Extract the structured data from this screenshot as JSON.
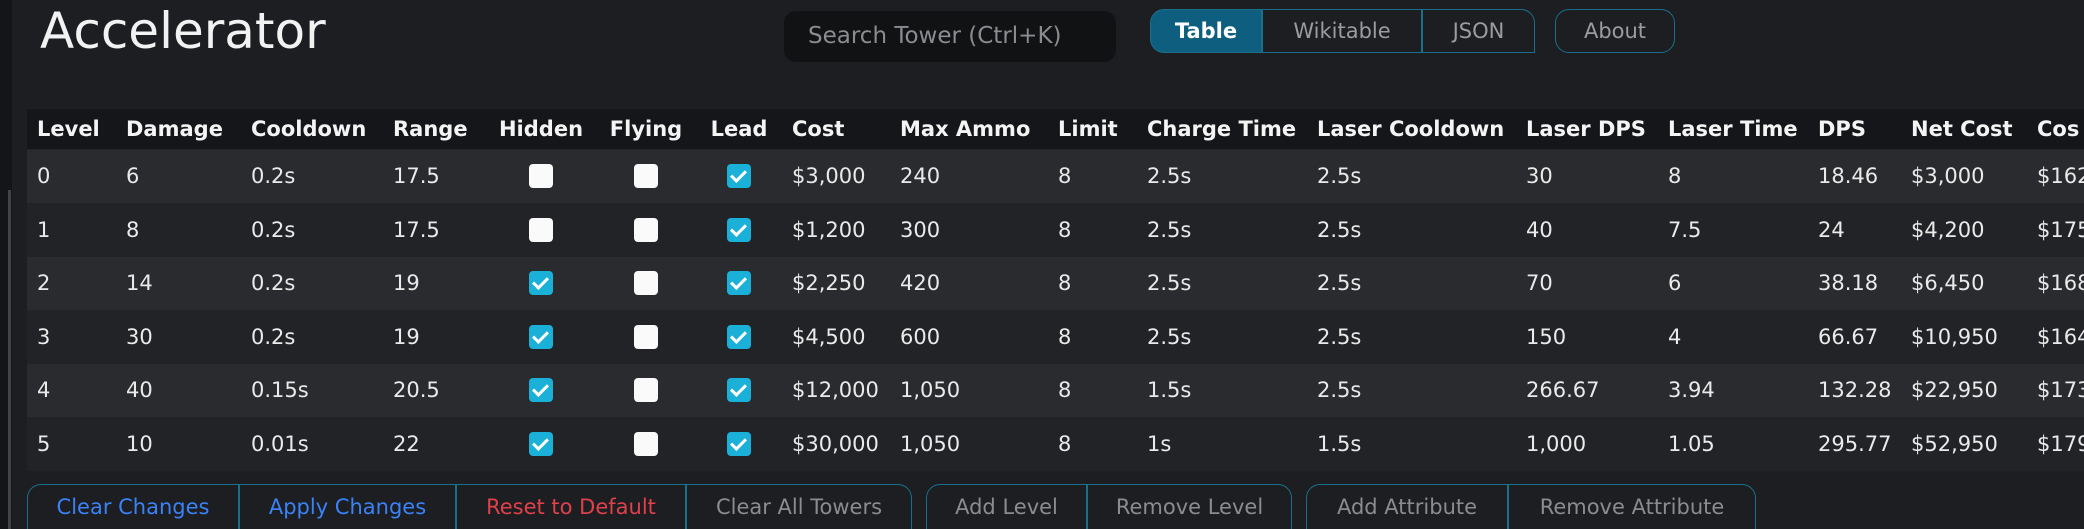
{
  "header": {
    "title": "Accelerator",
    "search_placeholder": "Search Tower (Ctrl+K)",
    "tabs": [
      "Table",
      "Wikitable",
      "JSON"
    ],
    "about": "About"
  },
  "table": {
    "columns": [
      "Level",
      "Damage",
      "Cooldown",
      "Range",
      "Hidden",
      "Flying",
      "Lead",
      "Cost",
      "Max Ammo",
      "Limit",
      "Charge Time",
      "Laser Cooldown",
      "Laser DPS",
      "Laser Time",
      "DPS",
      "Net Cost",
      "Cos"
    ],
    "rows": [
      [
        "0",
        "6",
        "0.2s",
        "17.5",
        false,
        false,
        true,
        "$3,000",
        "240",
        "8",
        "2.5s",
        "2.5s",
        "30",
        "8",
        "18.46",
        "$3,000",
        "$162"
      ],
      [
        "1",
        "8",
        "0.2s",
        "17.5",
        false,
        false,
        true,
        "$1,200",
        "300",
        "8",
        "2.5s",
        "2.5s",
        "40",
        "7.5",
        "24",
        "$4,200",
        "$175"
      ],
      [
        "2",
        "14",
        "0.2s",
        "19",
        true,
        false,
        true,
        "$2,250",
        "420",
        "8",
        "2.5s",
        "2.5s",
        "70",
        "6",
        "38.18",
        "$6,450",
        "$168"
      ],
      [
        "3",
        "30",
        "0.2s",
        "19",
        true,
        false,
        true,
        "$4,500",
        "600",
        "8",
        "2.5s",
        "2.5s",
        "150",
        "4",
        "66.67",
        "$10,950",
        "$164"
      ],
      [
        "4",
        "40",
        "0.15s",
        "20.5",
        true,
        false,
        true,
        "$12,000",
        "1,050",
        "8",
        "1.5s",
        "2.5s",
        "266.67",
        "3.94",
        "132.28",
        "$22,950",
        "$173"
      ],
      [
        "5",
        "10",
        "0.01s",
        "22",
        true,
        false,
        true,
        "$30,000",
        "1,050",
        "8",
        "1s",
        "1.5s",
        "1,000",
        "1.05",
        "295.77",
        "$52,950",
        "$179"
      ]
    ]
  },
  "buttons": {
    "groups": [
      [
        "Clear Changes",
        "Apply Changes",
        "Reset to Default",
        "Clear All Towers"
      ],
      [
        "Add Level",
        "Remove Level"
      ],
      [
        "Add Attribute",
        "Remove Attribute"
      ]
    ]
  }
}
